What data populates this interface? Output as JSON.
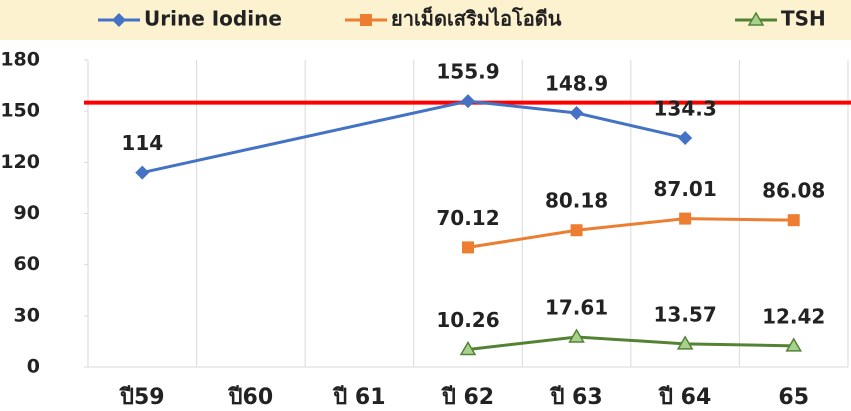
{
  "chart_data": {
    "type": "line",
    "categories": [
      "ปี59",
      "ปี60",
      "ปี 61",
      "ปี 62",
      "ปี 63",
      "ปี 64",
      "65"
    ],
    "series": [
      {
        "name": "Urine Iodine",
        "color": "#4472c4",
        "marker": "diamond",
        "values": [
          114,
          null,
          null,
          155.9,
          148.9,
          134.3,
          null
        ]
      },
      {
        "name": "ยาเม็ดเสริมไอโอดีน",
        "color": "#ed7d31",
        "marker": "square",
        "values": [
          null,
          null,
          null,
          70.12,
          80.18,
          87.01,
          86.08
        ]
      },
      {
        "name": "TSH",
        "color": "#548235",
        "marker": "triangle",
        "values": [
          null,
          null,
          null,
          10.26,
          17.61,
          13.57,
          12.42
        ]
      }
    ],
    "span_gaps": true,
    "reference_line": {
      "value": 155,
      "color": "#ff0000"
    },
    "ylim": [
      0,
      180
    ],
    "yticks": [
      0,
      30,
      60,
      90,
      120,
      150,
      180
    ],
    "legend": "top"
  }
}
